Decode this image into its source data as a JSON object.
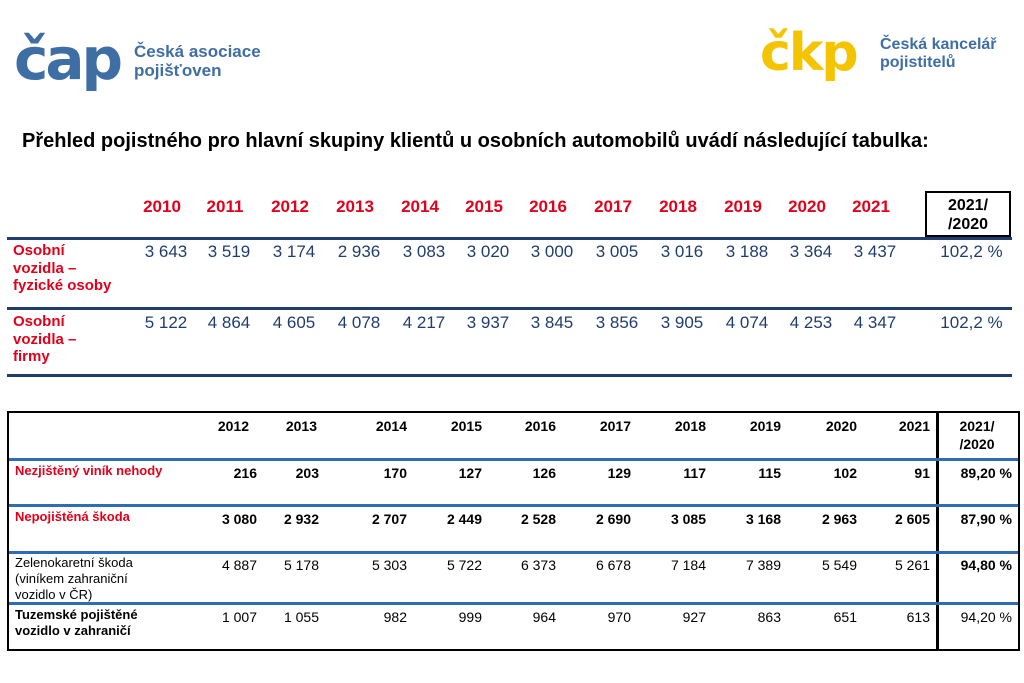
{
  "logos": {
    "cap": {
      "wordmark": "čap",
      "line1": "Česká asociace",
      "line2": "pojišťoven"
    },
    "ckp": {
      "wordmark": "čkp",
      "line1": "Česká kancelář",
      "line2": "pojistitelů"
    }
  },
  "colors": {
    "blue": "#3f6ea5",
    "navy": "#1f3e6e",
    "red": "#e3001b",
    "yellow": "#f5c400"
  },
  "heading": "Přehled pojistného pro hlavní skupiny klientů u osobních automobilů uvádí následující tabulka:",
  "table1": {
    "years": [
      "2010",
      "2011",
      "2012",
      "2013",
      "2014",
      "2015",
      "2016",
      "2017",
      "2018",
      "2019",
      "2020",
      "2021"
    ],
    "ratio_header": [
      "2021/",
      "/2020"
    ],
    "rows": [
      {
        "label": [
          "Osobní",
          "vozidla –",
          "fyzické osoby"
        ],
        "values": [
          "3 643",
          "3 519",
          "3 174",
          "2 936",
          "3 083",
          "3 020",
          "3 000",
          "3 005",
          "3 016",
          "3 188",
          "3 364",
          "3 437"
        ],
        "ratio": "102,2 %"
      },
      {
        "label": [
          "Osobní",
          "vozidla –",
          "firmy"
        ],
        "values": [
          "5 122",
          "4 864",
          "4 605",
          "4 078",
          "4 217",
          "3 937",
          "3 845",
          "3 856",
          "3 905",
          "4 074",
          "4 253",
          "4 347"
        ],
        "ratio": "102,2 %"
      }
    ]
  },
  "table2": {
    "years": [
      "2012",
      "2013",
      "2014",
      "2015",
      "2016",
      "2017",
      "2018",
      "2019",
      "2020",
      "2021"
    ],
    "ratio_header": [
      "2021/",
      "/2020"
    ],
    "rows": [
      {
        "label": [
          "Nezjištěný viník nehody"
        ],
        "values": [
          "216",
          "203",
          "170",
          "127",
          "126",
          "129",
          "117",
          "115",
          "102",
          "91"
        ],
        "ratio": "89,20 %"
      },
      {
        "label": [
          "Nepojištěná škoda"
        ],
        "values": [
          "3 080",
          "2 932",
          "2 707",
          "2 449",
          "2 528",
          "2 690",
          "3 085",
          "3 168",
          "2 963",
          "2 605"
        ],
        "ratio": "87,90 %"
      },
      {
        "label": [
          "Zelenokaretní škoda",
          "(viníkem zahraniční",
          "vozidlo v ČR)"
        ],
        "values": [
          "4 887",
          "5 178",
          "5 303",
          "5 722",
          "6 373",
          "6 678",
          "7 184",
          "7 389",
          "5 549",
          "5 261"
        ],
        "ratio": "94,80 %"
      },
      {
        "label": [
          "Tuzemské pojištěné",
          "vozidlo v zahraničí"
        ],
        "values": [
          "1 007",
          "1 055",
          "982",
          "999",
          "964",
          "970",
          "927",
          "863",
          "651",
          "613"
        ],
        "ratio": "94,20 %"
      }
    ]
  }
}
